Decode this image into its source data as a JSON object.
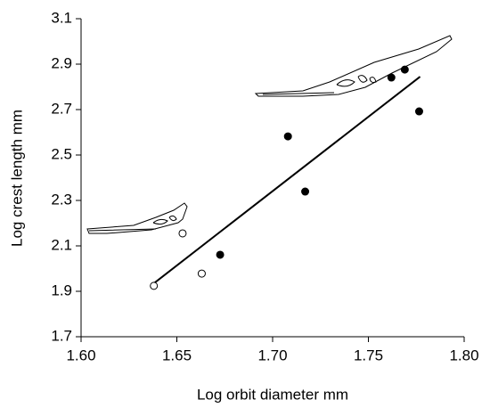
{
  "chart_data": {
    "type": "scatter",
    "x_label": "Log orbit diameter mm",
    "y_label": "Log crest length mm",
    "xlim": [
      1.6,
      1.8
    ],
    "xticks": [
      {
        "value": 1.6,
        "label": "1.60"
      },
      1.65,
      {
        "value": 1.7,
        "label": "1.70"
      },
      1.75,
      {
        "value": 1.8,
        "label": "1.80"
      }
    ],
    "ylim": [
      1.7,
      3.1
    ],
    "yticks": [
      1.7,
      1.9,
      2.1,
      2.3,
      2.5,
      2.7,
      2.9,
      3.1
    ],
    "series": [
      {
        "color": "#000000",
        "filled": false,
        "x": [
          1.638,
          1.653,
          1.663
        ],
        "values": [
          1.924,
          2.155,
          1.978
        ]
      },
      {
        "color": "#000000",
        "filled": true,
        "x": [
          1.6726,
          1.708,
          1.717,
          1.762,
          1.769,
          1.7765
        ],
        "values": [
          2.061,
          2.582,
          2.339,
          2.841,
          2.876,
          2.692
        ]
      }
    ],
    "trendline": {
      "color": "#000000",
      "x": [
        1.638,
        1.777
      ],
      "values": [
        1.935,
        2.845
      ]
    }
  }
}
